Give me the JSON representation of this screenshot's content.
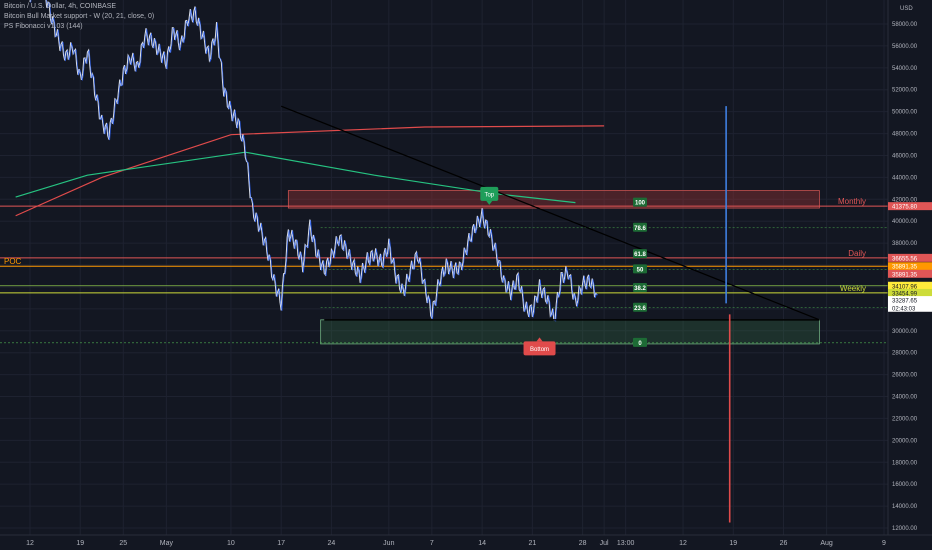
{
  "legend": {
    "symbol": "Bitcoin / U.S. Dollar, 4h, COINBASE",
    "indicator1": "Bitcoin Bull Market support - W (20, 21, close, 0)",
    "indicator2": "PS Fibonacci v1.03 (144)"
  },
  "axis": {
    "currency": "USD",
    "y_ticks": [
      12000,
      14000,
      16000,
      18000,
      20000,
      22000,
      24000,
      26000,
      28000,
      30000,
      32000,
      34000,
      36000,
      38000,
      40000,
      42000,
      44000,
      46000,
      48000,
      50000,
      52000,
      54000,
      56000,
      58000
    ],
    "y_tick_labels": [
      "12000.00",
      "14000.00",
      "16000.00",
      "18000.00",
      "20000.00",
      "22000.00",
      "24000.00",
      "26000.00",
      "28000.00",
      "30000.00",
      "32000.00",
      "34000.00",
      "36000.00",
      "38000.00",
      "40000.00",
      "42000.00",
      "44000.00",
      "46000.00",
      "48000.00",
      "50000.00",
      "52000.00",
      "54000.00",
      "56000.00",
      "58000.00"
    ],
    "x_ticks": [
      {
        "label": "12",
        "day": 0
      },
      {
        "label": "19",
        "day": 7
      },
      {
        "label": "25",
        "day": 13
      },
      {
        "label": "May",
        "day": 19
      },
      {
        "label": "10",
        "day": 28
      },
      {
        "label": "17",
        "day": 35
      },
      {
        "label": "24",
        "day": 42
      },
      {
        "label": "Jun",
        "day": 50
      },
      {
        "label": "7",
        "day": 56
      },
      {
        "label": "14",
        "day": 63
      },
      {
        "label": "21",
        "day": 70
      },
      {
        "label": "28",
        "day": 77
      },
      {
        "label": "Jul",
        "day": 80
      },
      {
        "label": "13:00",
        "day": 83
      },
      {
        "label": "12",
        "day": 91
      },
      {
        "label": "19",
        "day": 98
      },
      {
        "label": "26",
        "day": 105
      },
      {
        "label": "Aug",
        "day": 111
      },
      {
        "label": "9",
        "day": 119
      }
    ]
  },
  "chart_data": {
    "type": "line",
    "title": "Bitcoin / U.S. Dollar, 4h, COINBASE",
    "ylim": [
      11000,
      60000
    ],
    "price_series": {
      "name": "BTCUSD",
      "x": [
        0,
        1,
        2,
        3,
        4,
        5,
        6,
        7,
        8,
        9,
        10,
        11,
        12,
        13,
        14,
        15,
        16,
        17,
        18,
        19,
        20,
        21,
        22,
        23,
        24,
        25,
        26,
        27,
        28,
        29,
        30,
        31,
        32,
        33,
        34,
        35,
        36,
        37,
        38,
        39,
        40,
        41,
        42,
        43,
        44,
        45,
        46,
        47,
        48,
        49,
        50,
        51,
        52,
        53,
        54,
        55,
        56,
        57,
        58,
        59,
        60,
        61,
        62,
        63,
        64,
        65,
        66,
        67,
        68,
        69,
        70,
        71,
        72,
        73,
        74,
        75,
        76,
        77,
        78,
        79
      ],
      "values": [
        60000,
        62500,
        61000,
        58500,
        56500,
        55000,
        56000,
        53000,
        55500,
        52000,
        49000,
        48000,
        51000,
        53500,
        55000,
        54000,
        57000,
        56500,
        55500,
        54500,
        57500,
        56000,
        58500,
        59000,
        57000,
        55000,
        57500,
        52000,
        50000,
        49000,
        46500,
        41000,
        39500,
        37500,
        34500,
        32500,
        39000,
        38000,
        36000,
        39500,
        37000,
        35500,
        36800,
        38500,
        37500,
        36000,
        35000,
        36500,
        37000,
        36200,
        37800,
        35000,
        33500,
        35500,
        37000,
        34000,
        31500,
        34500,
        36000,
        35500,
        35800,
        38000,
        39500,
        40500,
        39000,
        37000,
        34500,
        33500,
        34800,
        32000,
        31800,
        34000,
        33000,
        31000,
        34800,
        35400,
        32500,
        34300,
        34600,
        33300
      ]
    },
    "ma_red": {
      "name": "",
      "x": [
        -2,
        10,
        28,
        55,
        80
      ],
      "values": [
        40500,
        44000,
        47900,
        48600,
        48700
      ]
    },
    "ma_green": {
      "name": "",
      "x": [
        -2,
        8,
        30,
        48,
        65,
        76
      ],
      "values": [
        42200,
        44200,
        46300,
        44200,
        42500,
        41700
      ]
    },
    "trendline": {
      "x": [
        35,
        110
      ],
      "values": [
        50500,
        31000
      ]
    },
    "support_line": {
      "x": [
        41,
        110
      ],
      "values": [
        31000,
        31000
      ]
    },
    "price_labels": [
      {
        "label": "41375.80",
        "price": 41375.8,
        "color": "#e05656"
      },
      {
        "label": "36655.56",
        "price": 36655.56,
        "color": "#e05656"
      },
      {
        "label": "35891.35",
        "price": 35891.35,
        "color": "#ff9800"
      },
      {
        "label": "35891.35",
        "price": 35200,
        "color": "#e05656"
      },
      {
        "label": "34107.96",
        "price": 34107.96,
        "color": "#ffeb3b"
      },
      {
        "label": "33454.99",
        "price": 33454.99,
        "color": "#cddc39"
      },
      {
        "label": "33287.65",
        "price": 32800,
        "color": "#ffffff"
      },
      {
        "label": "02:43:03",
        "price": 32100,
        "color": "#ffffff"
      }
    ],
    "levels": [
      {
        "label": "Monthly",
        "price": 41375.8,
        "color": "#e05656"
      },
      {
        "label": "Daily",
        "price": 36655.56,
        "color": "#e05656"
      },
      {
        "label": "POC",
        "price": 35891.35,
        "color": "#ff9800"
      },
      {
        "label": "Weekly",
        "price": 33454.99,
        "color": "#cddc39"
      }
    ],
    "fib_labels": [
      {
        "label": "100",
        "price": 41700
      },
      {
        "label": "78.6",
        "price": 39400
      },
      {
        "label": "61.8",
        "price": 37000
      },
      {
        "label": "50",
        "price": 35600
      },
      {
        "label": "38.2",
        "price": 33900
      },
      {
        "label": "23.6",
        "price": 32100
      },
      {
        "label": "0",
        "price": 28900
      }
    ],
    "annotations": [
      {
        "label": "Top",
        "day": 64,
        "price": 42500
      },
      {
        "label": "Bottom",
        "day": 71,
        "price": 28400
      }
    ],
    "projection": {
      "day": 97,
      "start": 32500,
      "top": 50500,
      "bottom": 12500
    }
  }
}
